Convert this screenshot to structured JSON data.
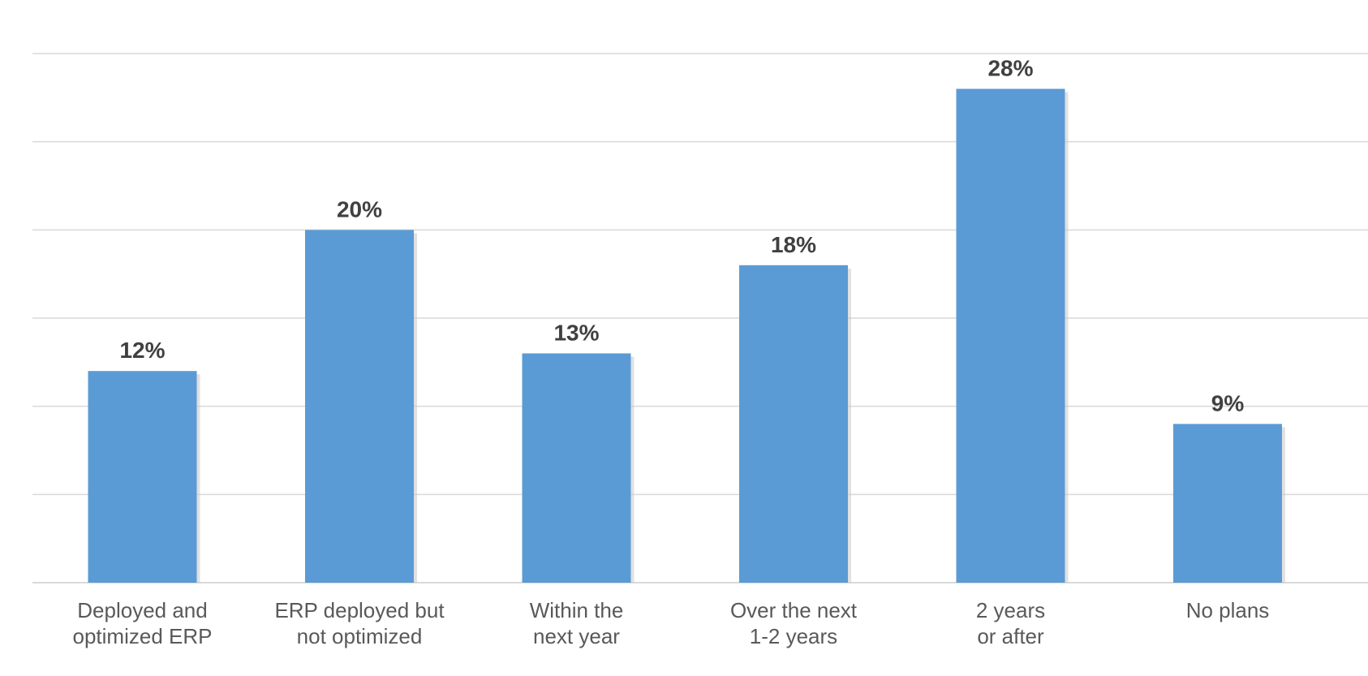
{
  "chart_data": {
    "type": "bar",
    "categories": [
      [
        "Deployed and",
        "optimized ERP"
      ],
      [
        "ERP deployed but",
        "not optimized"
      ],
      [
        "Within the",
        "next year"
      ],
      [
        "Over the next",
        "1-2 years"
      ],
      [
        "2 years",
        "or after"
      ],
      [
        "No plans"
      ]
    ],
    "values": [
      12,
      20,
      13,
      18,
      28,
      9
    ],
    "data_labels": [
      "12%",
      "20%",
      "13%",
      "18%",
      "28%",
      "9%"
    ],
    "unit": "%",
    "ylim": [
      0,
      30
    ],
    "gridline_step": 5,
    "grid": true,
    "y_tick_labels_visible": false,
    "legend": "none",
    "bar_color": "#5b9bd5",
    "label_color": "#404040",
    "tick_label_color": "#595959",
    "grid_color": "#d9d9d9"
  }
}
